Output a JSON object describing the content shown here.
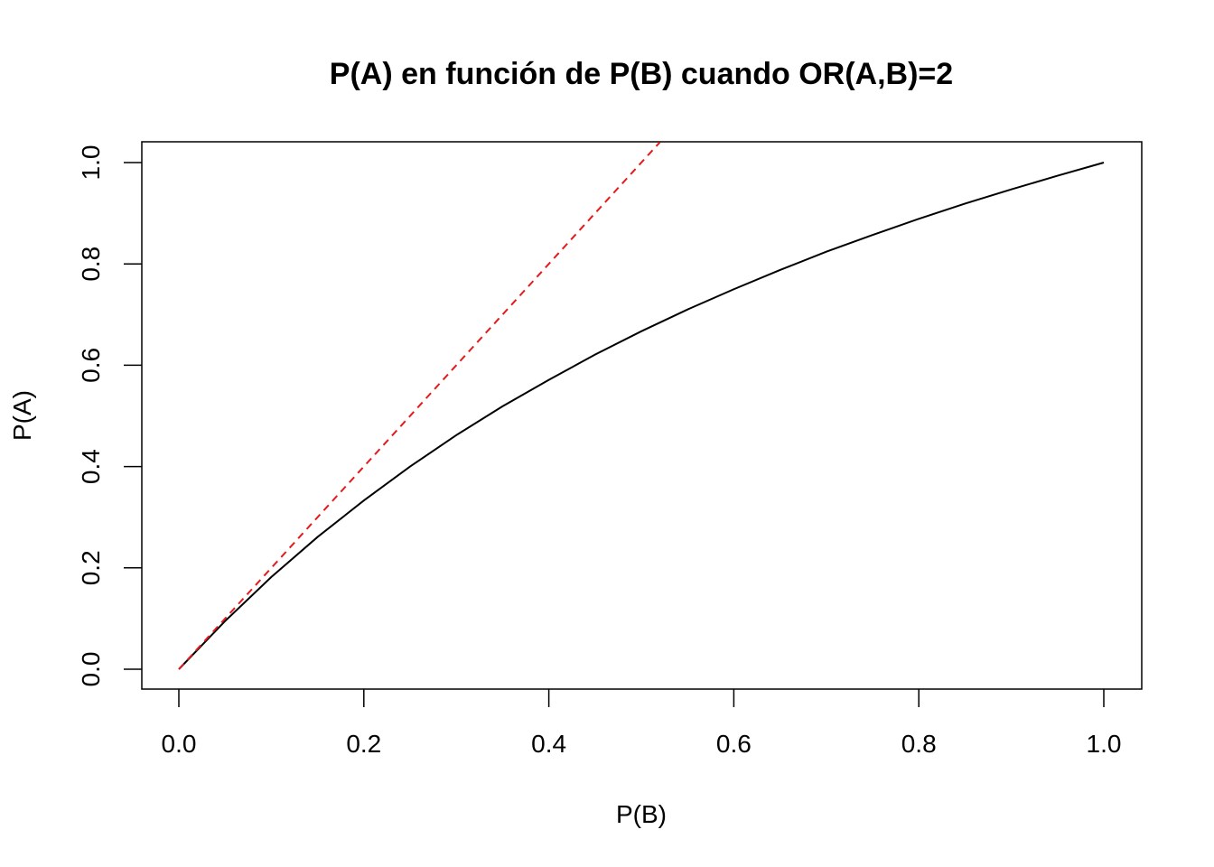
{
  "chart_data": {
    "type": "line",
    "title": "P(A) en función de P(B) cuando OR(A,B)=2",
    "xlabel": "P(B)",
    "ylabel": "P(A)",
    "xlim": [
      0,
      1
    ],
    "ylim": [
      0,
      1
    ],
    "xticks": [
      "0.0",
      "0.2",
      "0.4",
      "0.6",
      "0.8",
      "1.0"
    ],
    "yticks": [
      "0.0",
      "0.2",
      "0.4",
      "0.6",
      "0.8",
      "1.0"
    ],
    "grid": false,
    "legend": "none",
    "series": [
      {
        "style": "solid",
        "color": "#000000",
        "x": [
          0,
          0.05,
          0.1,
          0.15,
          0.2,
          0.25,
          0.3,
          0.35,
          0.4,
          0.45,
          0.5,
          0.55,
          0.6,
          0.65,
          0.7,
          0.75,
          0.8,
          0.85,
          0.9,
          0.95,
          1
        ],
        "y": [
          0,
          0.095,
          0.182,
          0.261,
          0.333,
          0.4,
          0.462,
          0.519,
          0.571,
          0.621,
          0.667,
          0.71,
          0.75,
          0.788,
          0.824,
          0.857,
          0.889,
          0.919,
          0.947,
          0.974,
          1
        ]
      },
      {
        "style": "dashed",
        "color": "#e41a1c",
        "x": [
          0,
          0.52
        ],
        "y": [
          0,
          1.04
        ]
      }
    ]
  }
}
